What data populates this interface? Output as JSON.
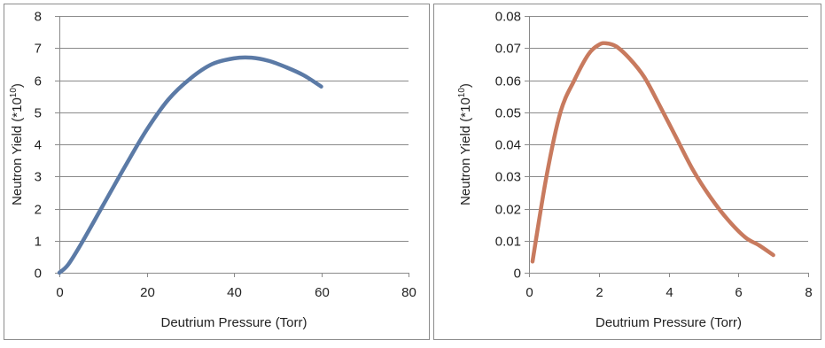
{
  "chart_data": [
    {
      "type": "line",
      "xlabel": "Deutrium Pressure (Torr)",
      "ylabel_prefix": "Neutron Yield (*10",
      "ylabel_sup": "10",
      "ylabel_suffix": ")",
      "xlim": [
        0,
        80
      ],
      "ylim": [
        0,
        8
      ],
      "xticks": [
        0,
        20,
        40,
        60,
        80
      ],
      "xtick_labels": [
        "0",
        "20",
        "40",
        "60",
        "80"
      ],
      "yticks": [
        0,
        1,
        2,
        3,
        4,
        5,
        6,
        7,
        8
      ],
      "ytick_labels": [
        "0",
        "1",
        "2",
        "3",
        "4",
        "5",
        "6",
        "7",
        "8"
      ],
      "grid": "horizontal",
      "series": [
        {
          "color": "#5b7aa6",
          "x": [
            0,
            2,
            5,
            10,
            15,
            20,
            25,
            30,
            35,
            40,
            44,
            48,
            52,
            56,
            60
          ],
          "y": [
            0,
            0.25,
            0.9,
            2.1,
            3.3,
            4.45,
            5.4,
            6.05,
            6.5,
            6.68,
            6.7,
            6.6,
            6.4,
            6.15,
            5.8
          ]
        }
      ]
    },
    {
      "type": "line",
      "xlabel": "Deutrium Pressure (Torr)",
      "ylabel_prefix": "Neutron Yield (*10",
      "ylabel_sup": "10",
      "ylabel_suffix": ")",
      "xlim": [
        0,
        8
      ],
      "ylim": [
        0,
        0.08
      ],
      "xticks": [
        0,
        2,
        4,
        6,
        8
      ],
      "xtick_labels": [
        "0",
        "2",
        "4",
        "6",
        "8"
      ],
      "yticks": [
        0,
        0.01,
        0.02,
        0.03,
        0.04,
        0.05,
        0.06,
        0.07,
        0.08
      ],
      "ytick_labels": [
        "0",
        "0.01",
        "0.02",
        "0.03",
        "0.04",
        "0.05",
        "0.06",
        "0.07",
        "0.08"
      ],
      "grid": "horizontal",
      "series": [
        {
          "color": "#c87a5e",
          "x": [
            0.1,
            0.5,
            0.9,
            1.3,
            1.7,
            2.0,
            2.2,
            2.5,
            2.9,
            3.3,
            3.7,
            4.2,
            4.7,
            5.2,
            5.7,
            6.2,
            6.6,
            7.0
          ],
          "y": [
            0.0035,
            0.03,
            0.05,
            0.06,
            0.068,
            0.071,
            0.0715,
            0.0705,
            0.0665,
            0.061,
            0.053,
            0.0425,
            0.032,
            0.0235,
            0.0165,
            0.011,
            0.0085,
            0.0055
          ]
        }
      ]
    }
  ]
}
